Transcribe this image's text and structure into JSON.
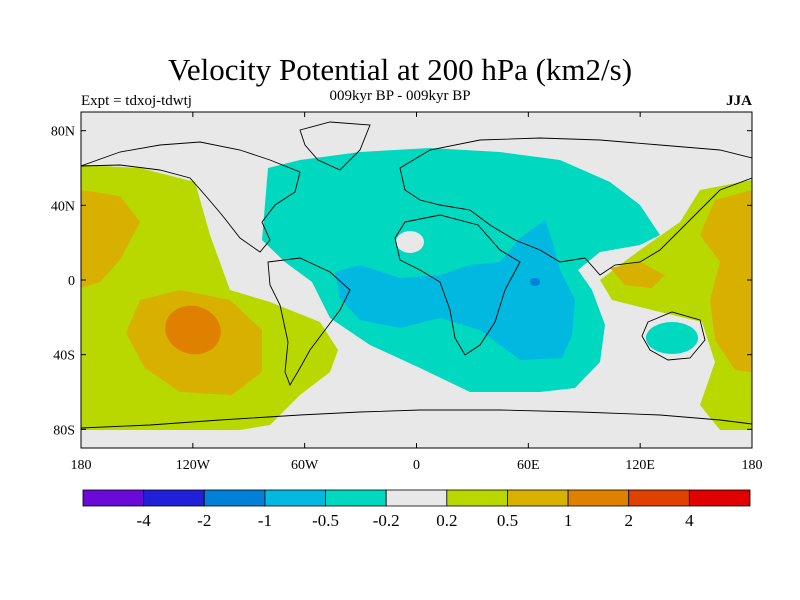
{
  "header": {
    "title": "Velocity Potential at 200 hPa (km2/s)",
    "subtitle": "009kyr BP - 009kyr BP",
    "experiment": "Expt = tdxoj-tdwtj",
    "season": "JJA"
  },
  "map": {
    "projection": "cylindrical-equidistant",
    "lon_range": [
      -180,
      180
    ],
    "lat_range": [
      -90,
      90
    ],
    "lon_ticks": [
      {
        "value": -180,
        "label": "180"
      },
      {
        "value": -120,
        "label": "120W"
      },
      {
        "value": -60,
        "label": "60W"
      },
      {
        "value": 0,
        "label": "0"
      },
      {
        "value": 60,
        "label": "60E"
      },
      {
        "value": 120,
        "label": "120E"
      },
      {
        "value": 180,
        "label": "180"
      }
    ],
    "lat_ticks": [
      {
        "value": 80,
        "label": "80N"
      },
      {
        "value": 40,
        "label": "40N"
      },
      {
        "value": 0,
        "label": "0"
      },
      {
        "value": -40,
        "label": "40S"
      },
      {
        "value": -80,
        "label": "80S"
      }
    ],
    "background_color": "#e8e8e8",
    "coastline_color": "#000000"
  },
  "colorbar": {
    "colors": [
      "#6a0ad8",
      "#2020d8",
      "#0080d8",
      "#00b8e0",
      "#00d8c0",
      "#e8e8e8",
      "#b8d800",
      "#d8b000",
      "#e08000",
      "#e04000",
      "#e00000"
    ],
    "labels": [
      "-4",
      "-2",
      "-1",
      "-0.5",
      "-0.2",
      "0.2",
      "0.5",
      "1",
      "2",
      "4"
    ]
  }
}
